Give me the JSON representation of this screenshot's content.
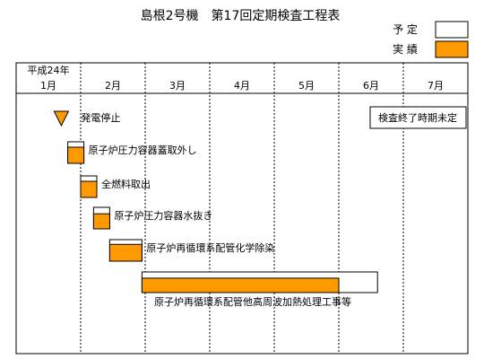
{
  "chart_data": {
    "type": "gantt",
    "title": "島根2号機　第17回定期検査工程表",
    "year_label": "平成24年",
    "months": [
      "1月",
      "2月",
      "3月",
      "4月",
      "5月",
      "6月",
      "7月"
    ],
    "legend": [
      {
        "label": "予 定",
        "fill": "#ffffff"
      },
      {
        "label": "実 績",
        "fill": "#ff9900"
      }
    ],
    "end_note": "検査終了時期未定",
    "milestones": [
      {
        "label": "発電停止",
        "month": 0.7
      }
    ],
    "tasks": [
      {
        "label": "原子炉圧力容器蓋取外し",
        "plan_start": 0.8,
        "plan_end": 1.05,
        "actual_start": 0.8,
        "actual_end": 1.05,
        "actual_fraction": 0.75
      },
      {
        "label": "全燃料取出",
        "plan_start": 1.0,
        "plan_end": 1.25,
        "actual_start": 1.0,
        "actual_end": 1.25,
        "actual_fraction": 0.75
      },
      {
        "label": "原子炉圧力容器水抜き",
        "plan_start": 1.2,
        "plan_end": 1.45,
        "actual_start": 1.2,
        "actual_end": 1.45,
        "actual_fraction": 0.7
      },
      {
        "label": "原子炉再循環系配管化学除染",
        "plan_start": 1.45,
        "plan_end": 1.95,
        "actual_start": 1.45,
        "actual_end": 1.95,
        "actual_fraction": 0.78
      },
      {
        "label": "原子炉再循環系配管他高周波加熱処理工事等",
        "plan_start": 1.95,
        "plan_end": 5.6,
        "actual_start": 1.95,
        "actual_end": 5.0,
        "actual_fraction": 0.7
      }
    ],
    "colors": {
      "actual": "#ff9900",
      "plan": "#ffffff",
      "line": "#000000",
      "grid": "#000000"
    }
  }
}
